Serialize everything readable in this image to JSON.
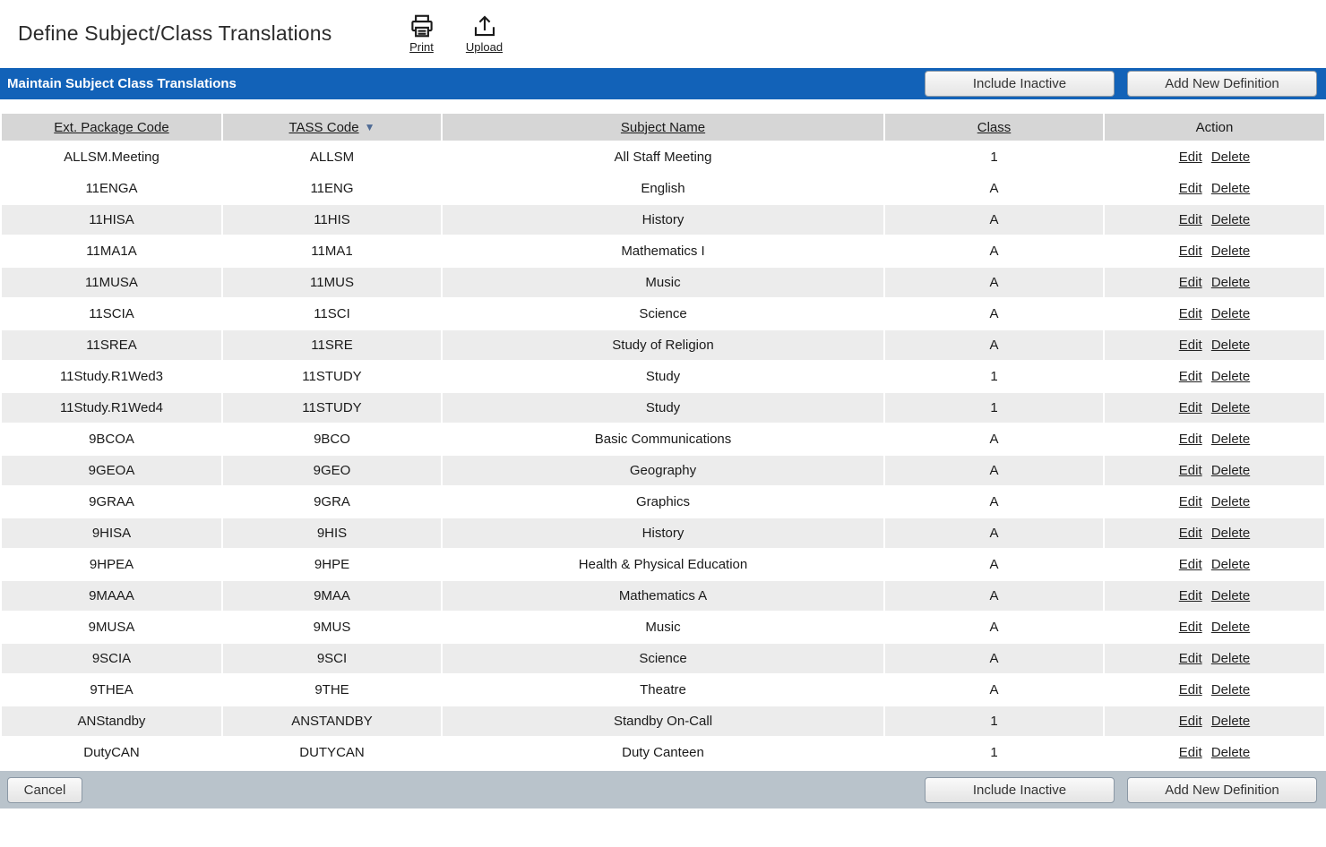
{
  "page": {
    "title": "Define Subject/Class Translations"
  },
  "toolbar": {
    "print_label": "Print",
    "upload_label": "Upload"
  },
  "header_bar": {
    "title": "Maintain Subject Class Translations",
    "include_inactive_label": "Include Inactive",
    "add_new_label": "Add New Definition"
  },
  "table": {
    "columns": [
      "Ext. Package Code",
      "TASS Code",
      "Subject Name",
      "Class",
      "Action"
    ],
    "sorted_column": "TASS Code",
    "sort_direction": "desc",
    "action_labels": {
      "edit": "Edit",
      "delete": "Delete"
    },
    "rows": [
      {
        "ext_package_code": "ALLSM.Meeting",
        "tass_code": "ALLSM",
        "subject_name": "All Staff Meeting",
        "class": "1"
      },
      {
        "ext_package_code": "11ENGA",
        "tass_code": "11ENG",
        "subject_name": "English",
        "class": "A"
      },
      {
        "ext_package_code": "11HISA",
        "tass_code": "11HIS",
        "subject_name": "History",
        "class": "A"
      },
      {
        "ext_package_code": "11MA1A",
        "tass_code": "11MA1",
        "subject_name": "Mathematics I",
        "class": "A"
      },
      {
        "ext_package_code": "11MUSA",
        "tass_code": "11MUS",
        "subject_name": "Music",
        "class": "A"
      },
      {
        "ext_package_code": "11SCIA",
        "tass_code": "11SCI",
        "subject_name": "Science",
        "class": "A"
      },
      {
        "ext_package_code": "11SREA",
        "tass_code": "11SRE",
        "subject_name": "Study of Religion",
        "class": "A"
      },
      {
        "ext_package_code": "11Study.R1Wed3",
        "tass_code": "11STUDY",
        "subject_name": "Study",
        "class": "1"
      },
      {
        "ext_package_code": "11Study.R1Wed4",
        "tass_code": "11STUDY",
        "subject_name": "Study",
        "class": "1"
      },
      {
        "ext_package_code": "9BCOA",
        "tass_code": "9BCO",
        "subject_name": "Basic Communications",
        "class": "A"
      },
      {
        "ext_package_code": "9GEOA",
        "tass_code": "9GEO",
        "subject_name": "Geography",
        "class": "A"
      },
      {
        "ext_package_code": "9GRAA",
        "tass_code": "9GRA",
        "subject_name": "Graphics",
        "class": "A"
      },
      {
        "ext_package_code": "9HISA",
        "tass_code": "9HIS",
        "subject_name": "History",
        "class": "A"
      },
      {
        "ext_package_code": "9HPEA",
        "tass_code": "9HPE",
        "subject_name": "Health & Physical Education",
        "class": "A"
      },
      {
        "ext_package_code": "9MAAA",
        "tass_code": "9MAA",
        "subject_name": "Mathematics A",
        "class": "A"
      },
      {
        "ext_package_code": "9MUSA",
        "tass_code": "9MUS",
        "subject_name": "Music",
        "class": "A"
      },
      {
        "ext_package_code": "9SCIA",
        "tass_code": "9SCI",
        "subject_name": "Science",
        "class": "A"
      },
      {
        "ext_package_code": "9THEA",
        "tass_code": "9THE",
        "subject_name": "Theatre",
        "class": "A"
      },
      {
        "ext_package_code": "ANStandby",
        "tass_code": "ANSTANDBY",
        "subject_name": "Standby On-Call",
        "class": "1"
      },
      {
        "ext_package_code": "DutyCAN",
        "tass_code": "DUTYCAN",
        "subject_name": "Duty Canteen",
        "class": "1"
      }
    ]
  },
  "footer": {
    "cancel_label": "Cancel",
    "include_inactive_label": "Include Inactive",
    "add_new_label": "Add New Definition"
  },
  "colors": {
    "header_blue": "#1262b8",
    "footer_bar": "#b9c3cb",
    "table_header": "#d6d6d6",
    "zebra_row": "#ececec"
  },
  "icons": {
    "sort_desc": "▼"
  }
}
